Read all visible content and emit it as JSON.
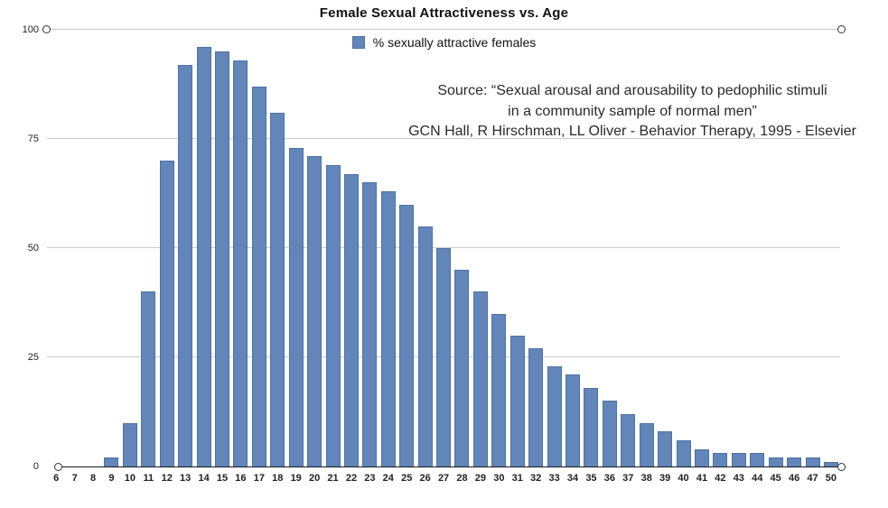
{
  "title": "Female Sexual Attractiveness vs. Age",
  "legend": {
    "label": "% sexually attractive females",
    "swatch_color": "#6286b9"
  },
  "source": {
    "line1": "Source: “Sexual arousal and arousability to pedophilic stimuli",
    "line2": "in a community sample of normal men”",
    "line3": "GCN Hall, R Hirschman, LL Oliver - Behavior Therapy, 1995 - Elsevier"
  },
  "colors": {
    "bar_fill": "#6286b9",
    "bar_border": "#4d72a3",
    "gridline": "#cacaca",
    "axis_line": "#1a1a1a"
  },
  "chart_data": {
    "type": "bar",
    "title": "Female Sexual Attractiveness vs. Age",
    "series_name": "% sexually attractive females",
    "categories": [
      "6",
      "7",
      "8",
      "9",
      "10",
      "11",
      "12",
      "13",
      "14",
      "15",
      "16",
      "17",
      "18",
      "19",
      "20",
      "21",
      "22",
      "23",
      "24",
      "25",
      "26",
      "27",
      "28",
      "29",
      "30",
      "31",
      "32",
      "33",
      "34",
      "35",
      "36",
      "37",
      "38",
      "39",
      "40",
      "41",
      "42",
      "43",
      "44",
      "45",
      "46",
      "47",
      "50"
    ],
    "values": [
      0,
      0,
      0,
      2,
      10,
      40,
      70,
      92,
      96,
      95,
      93,
      87,
      81,
      73,
      71,
      69,
      67,
      65,
      63,
      60,
      55,
      50,
      45,
      40,
      35,
      30,
      27,
      23,
      21,
      18,
      15,
      12,
      10,
      8,
      6,
      4,
      3,
      3,
      3,
      2,
      2,
      2,
      1
    ],
    "xlabel": "",
    "ylabel": "",
    "ylim": [
      0,
      100
    ],
    "yticks": [
      0,
      25,
      50,
      75,
      100
    ],
    "grid": true,
    "legend_position": "top-center"
  }
}
